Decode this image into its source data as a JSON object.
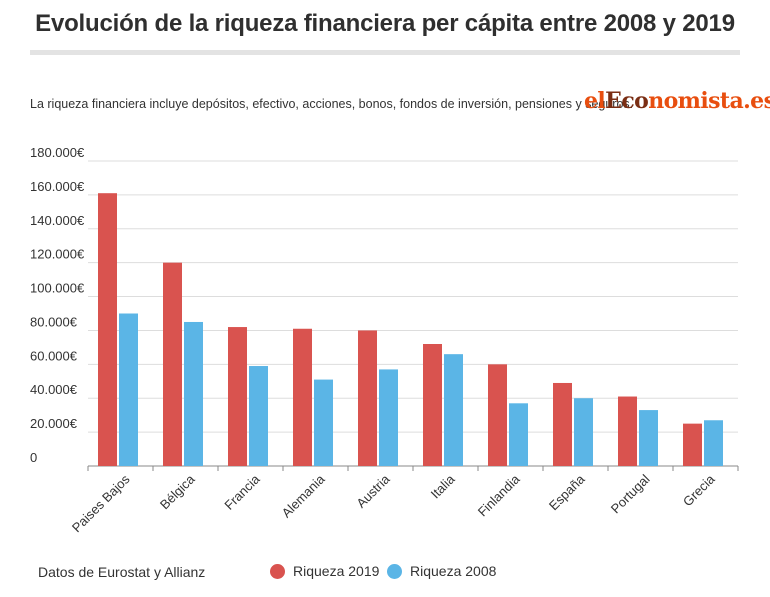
{
  "header": {
    "title": "Evolución de la riqueza financiera per cápita entre 2008 y 2019",
    "subtitle": "La riqueza financiera incluye depósitos, efectivo, acciones, bonos, fondos de inversión, pensiones y seguros."
  },
  "logo": {
    "part1": "el",
    "part2": "Eco",
    "part3": "nomista.es"
  },
  "footer": {
    "source": "Datos de Eurostat y Allianz"
  },
  "colors": {
    "series_2019": "#d9534f",
    "series_2008": "#5bb5e6",
    "grid": "#dddddd",
    "axis": "#888888"
  },
  "chart_data": {
    "type": "bar",
    "categories": [
      "Paises Bajos",
      "Bélgica",
      "Francia",
      "Alemania",
      "Austria",
      "Italia",
      "Finlandia",
      "España",
      "Portugal",
      "Grecia"
    ],
    "series": [
      {
        "name": "Riqueza 2019",
        "color": "#d9534f",
        "values": [
          161000,
          120000,
          82000,
          81000,
          80000,
          72000,
          60000,
          49000,
          41000,
          25000
        ]
      },
      {
        "name": "Riqueza 2008",
        "color": "#5bb5e6",
        "values": [
          90000,
          85000,
          59000,
          51000,
          57000,
          66000,
          37000,
          40000,
          33000,
          27000
        ]
      }
    ],
    "yticks": [
      "0",
      "20.000€",
      "40.000€",
      "60.000€",
      "80.000€",
      "100.000€",
      "120.000€",
      "140.000€",
      "160.000€",
      "180.000€"
    ],
    "ylim": [
      0,
      180000
    ],
    "grid": true,
    "legend_position": "bottom"
  }
}
